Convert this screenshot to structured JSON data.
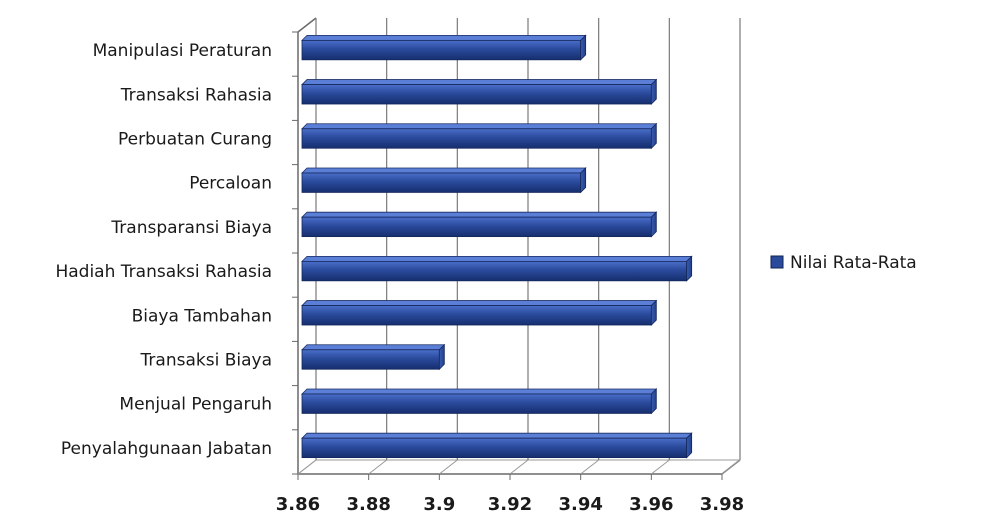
{
  "chart_data": {
    "type": "bar",
    "orientation": "horizontal",
    "title": "",
    "xlabel": "",
    "ylabel": "",
    "categories": [
      "Penyalahgunaan Jabatan",
      "Menjual Pengaruh",
      "Transaksi Biaya",
      "Biaya Tambahan",
      "Hadiah Transaksi Rahasia",
      "Transparansi Biaya",
      "Percaloan",
      "Perbuatan Curang",
      "Transaksi Rahasia",
      "Manipulasi Peraturan"
    ],
    "series": [
      {
        "name": "Nilai Rata-Rata",
        "color": "#2a4a9c",
        "values": [
          3.97,
          3.96,
          3.9,
          3.96,
          3.97,
          3.96,
          3.94,
          3.96,
          3.96,
          3.94
        ]
      }
    ],
    "xlim": [
      3.86,
      3.98
    ],
    "x_ticks": [
      "3.86",
      "3.88",
      "3.9",
      "3.92",
      "3.94",
      "3.96",
      "3.98"
    ],
    "grid": true,
    "legend_position": "right"
  }
}
